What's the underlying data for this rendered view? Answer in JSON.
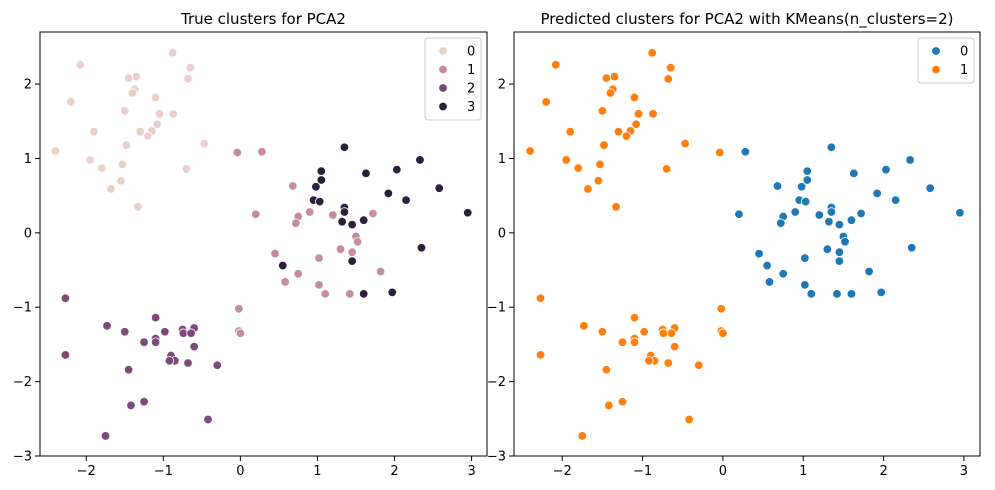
{
  "chart_data": [
    {
      "type": "scatter",
      "title": "True clusters for PCA2",
      "xlabel": "",
      "ylabel": "",
      "xlim": [
        -2.6,
        3.2
      ],
      "ylim": [
        -3,
        2.7
      ],
      "xticks": [
        -2,
        -1,
        0,
        1,
        2,
        3
      ],
      "yticks": [
        -3,
        -2,
        -1,
        0,
        1,
        2
      ],
      "xtick_labels": [
        "−2",
        "−1",
        "0",
        "1",
        "2",
        "3"
      ],
      "ytick_labels": [
        "−3",
        "−2",
        "−1",
        "0",
        "1",
        "2"
      ],
      "legend": {
        "position": "upper right",
        "entries": [
          "0",
          "1",
          "2",
          "3"
        ]
      },
      "colors": [
        "#ebd0c9",
        "#c48c9f",
        "#7c4a79",
        "#2d1e3e"
      ],
      "series": [
        {
          "name": "0",
          "points": [
            [
              -0.88,
              2.42
            ],
            [
              -2.08,
              2.26
            ],
            [
              -1.35,
              2.1
            ],
            [
              -1.45,
              2.08
            ],
            [
              -0.65,
              2.22
            ],
            [
              -0.68,
              2.07
            ],
            [
              -1.1,
              1.82
            ],
            [
              -2.2,
              1.76
            ],
            [
              -0.87,
              1.6
            ],
            [
              -1.37,
              1.93
            ],
            [
              -1.4,
              1.88
            ],
            [
              -1.05,
              1.6
            ],
            [
              -1.08,
              1.46
            ],
            [
              -1.5,
              1.64
            ],
            [
              -1.9,
              1.36
            ],
            [
              -1.3,
              1.36
            ],
            [
              -1.15,
              1.37
            ],
            [
              -1.2,
              1.3
            ],
            [
              -0.47,
              1.2
            ],
            [
              -1.48,
              1.18
            ],
            [
              -2.4,
              1.1
            ],
            [
              -1.95,
              0.98
            ],
            [
              -1.53,
              0.92
            ],
            [
              -1.8,
              0.87
            ],
            [
              -0.7,
              0.86
            ],
            [
              -1.55,
              0.7
            ],
            [
              -1.68,
              0.59
            ],
            [
              -1.33,
              0.35
            ]
          ]
        },
        {
          "name": "1",
          "points": [
            [
              -0.04,
              1.08
            ],
            [
              0.28,
              1.09
            ],
            [
              0.68,
              0.63
            ],
            [
              0.2,
              0.25
            ],
            [
              0.75,
              0.22
            ],
            [
              0.72,
              0.13
            ],
            [
              1.2,
              0.24
            ],
            [
              1.72,
              0.26
            ],
            [
              0.9,
              0.28
            ],
            [
              1.5,
              -0.05
            ],
            [
              1.52,
              -0.12
            ],
            [
              1.45,
              -0.26
            ],
            [
              1.3,
              -0.22
            ],
            [
              0.45,
              -0.28
            ],
            [
              0.75,
              -0.55
            ],
            [
              1.02,
              -0.34
            ],
            [
              1.82,
              -0.52
            ],
            [
              0.58,
              -0.66
            ],
            [
              1.02,
              -0.7
            ],
            [
              1.42,
              -0.82
            ],
            [
              1.1,
              -0.82
            ],
            [
              -0.02,
              -1.02
            ],
            [
              -0.02,
              -1.32
            ],
            [
              0.0,
              -1.35
            ]
          ]
        },
        {
          "name": "2",
          "points": [
            [
              -2.27,
              -0.88
            ],
            [
              -1.73,
              -1.25
            ],
            [
              -1.5,
              -1.33
            ],
            [
              -1.1,
              -1.14
            ],
            [
              -0.75,
              -1.3
            ],
            [
              -0.74,
              -1.35
            ],
            [
              -0.6,
              -1.28
            ],
            [
              -0.98,
              -1.33
            ],
            [
              -1.1,
              -1.42
            ],
            [
              -1.1,
              -1.47
            ],
            [
              -1.25,
              -1.47
            ],
            [
              -0.6,
              -1.53
            ],
            [
              -0.9,
              -1.65
            ],
            [
              -0.85,
              -1.72
            ],
            [
              -0.68,
              -1.75
            ],
            [
              -0.92,
              -1.72
            ],
            [
              -2.27,
              -1.64
            ],
            [
              -1.45,
              -1.84
            ],
            [
              -0.3,
              -1.78
            ],
            [
              -1.25,
              -2.27
            ],
            [
              -1.42,
              -2.32
            ],
            [
              -0.42,
              -2.51
            ],
            [
              -1.75,
              -2.73
            ],
            [
              -0.64,
              -1.35
            ]
          ]
        },
        {
          "name": "3",
          "points": [
            [
              1.35,
              1.15
            ],
            [
              2.33,
              0.98
            ],
            [
              2.03,
              0.85
            ],
            [
              1.63,
              0.8
            ],
            [
              1.05,
              0.83
            ],
            [
              1.05,
              0.71
            ],
            [
              0.98,
              0.62
            ],
            [
              2.58,
              0.6
            ],
            [
              1.92,
              0.53
            ],
            [
              2.15,
              0.44
            ],
            [
              0.95,
              0.44
            ],
            [
              1.03,
              0.42
            ],
            [
              1.35,
              0.34
            ],
            [
              1.35,
              0.28
            ],
            [
              2.95,
              0.27
            ],
            [
              1.6,
              0.17
            ],
            [
              1.32,
              0.15
            ],
            [
              1.45,
              0.11
            ],
            [
              2.35,
              -0.2
            ],
            [
              0.55,
              -0.44
            ],
            [
              1.45,
              -0.38
            ],
            [
              1.97,
              -0.8
            ],
            [
              1.6,
              -0.82
            ]
          ]
        }
      ]
    },
    {
      "type": "scatter",
      "title": "Predicted clusters for PCA2 with KMeans(n_clusters=2)",
      "xlabel": "",
      "ylabel": "",
      "xlim": [
        -2.6,
        3.2
      ],
      "ylim": [
        -3,
        2.7
      ],
      "xticks": [
        -2,
        -1,
        0,
        1,
        2,
        3
      ],
      "yticks": [
        -3,
        -2,
        -1,
        0,
        1,
        2
      ],
      "xtick_labels": [
        "−2",
        "−1",
        "0",
        "1",
        "2",
        "3"
      ],
      "ytick_labels": [
        "−3",
        "−2",
        "−1",
        "0",
        "1",
        "2"
      ],
      "legend": {
        "position": "upper right",
        "entries": [
          "0",
          "1"
        ]
      },
      "colors": [
        "#1f77b4",
        "#ff7f0e"
      ],
      "series": [
        {
          "name": "0",
          "points": [
            [
              0.28,
              1.09
            ],
            [
              0.68,
              0.63
            ],
            [
              0.2,
              0.25
            ],
            [
              0.75,
              0.22
            ],
            [
              0.72,
              0.13
            ],
            [
              1.2,
              0.24
            ],
            [
              1.72,
              0.26
            ],
            [
              0.9,
              0.28
            ],
            [
              1.5,
              -0.05
            ],
            [
              1.52,
              -0.12
            ],
            [
              1.45,
              -0.26
            ],
            [
              1.3,
              -0.22
            ],
            [
              0.45,
              -0.28
            ],
            [
              0.75,
              -0.55
            ],
            [
              1.02,
              -0.34
            ],
            [
              1.82,
              -0.52
            ],
            [
              0.58,
              -0.66
            ],
            [
              1.02,
              -0.7
            ],
            [
              1.42,
              -0.82
            ],
            [
              1.1,
              -0.82
            ],
            [
              1.35,
              1.15
            ],
            [
              2.33,
              0.98
            ],
            [
              2.03,
              0.85
            ],
            [
              1.63,
              0.8
            ],
            [
              1.05,
              0.83
            ],
            [
              1.05,
              0.71
            ],
            [
              0.98,
              0.62
            ],
            [
              2.58,
              0.6
            ],
            [
              1.92,
              0.53
            ],
            [
              2.15,
              0.44
            ],
            [
              0.95,
              0.44
            ],
            [
              1.03,
              0.42
            ],
            [
              1.35,
              0.34
            ],
            [
              1.35,
              0.28
            ],
            [
              2.95,
              0.27
            ],
            [
              1.6,
              0.17
            ],
            [
              1.32,
              0.15
            ],
            [
              1.45,
              0.11
            ],
            [
              2.35,
              -0.2
            ],
            [
              0.55,
              -0.44
            ],
            [
              1.45,
              -0.38
            ],
            [
              1.97,
              -0.8
            ],
            [
              1.6,
              -0.82
            ]
          ]
        },
        {
          "name": "1",
          "points": [
            [
              -0.88,
              2.42
            ],
            [
              -2.08,
              2.26
            ],
            [
              -1.35,
              2.1
            ],
            [
              -1.45,
              2.08
            ],
            [
              -0.65,
              2.22
            ],
            [
              -0.68,
              2.07
            ],
            [
              -1.1,
              1.82
            ],
            [
              -2.2,
              1.76
            ],
            [
              -0.87,
              1.6
            ],
            [
              -1.37,
              1.93
            ],
            [
              -1.4,
              1.88
            ],
            [
              -1.05,
              1.6
            ],
            [
              -1.08,
              1.46
            ],
            [
              -1.5,
              1.64
            ],
            [
              -1.9,
              1.36
            ],
            [
              -1.3,
              1.36
            ],
            [
              -1.15,
              1.37
            ],
            [
              -1.2,
              1.3
            ],
            [
              -0.47,
              1.2
            ],
            [
              -1.48,
              1.18
            ],
            [
              -2.4,
              1.1
            ],
            [
              -1.95,
              0.98
            ],
            [
              -1.53,
              0.92
            ],
            [
              -1.8,
              0.87
            ],
            [
              -0.7,
              0.86
            ],
            [
              -1.55,
              0.7
            ],
            [
              -1.68,
              0.59
            ],
            [
              -1.33,
              0.35
            ],
            [
              -0.04,
              1.08
            ],
            [
              -0.02,
              -1.02
            ],
            [
              -0.02,
              -1.32
            ],
            [
              0.0,
              -1.35
            ],
            [
              -2.27,
              -0.88
            ],
            [
              -1.73,
              -1.25
            ],
            [
              -1.5,
              -1.33
            ],
            [
              -1.1,
              -1.14
            ],
            [
              -0.75,
              -1.3
            ],
            [
              -0.74,
              -1.35
            ],
            [
              -0.6,
              -1.28
            ],
            [
              -0.98,
              -1.33
            ],
            [
              -1.1,
              -1.42
            ],
            [
              -1.1,
              -1.47
            ],
            [
              -1.25,
              -1.47
            ],
            [
              -0.6,
              -1.53
            ],
            [
              -0.9,
              -1.65
            ],
            [
              -0.85,
              -1.72
            ],
            [
              -0.68,
              -1.75
            ],
            [
              -0.92,
              -1.72
            ],
            [
              -2.27,
              -1.64
            ],
            [
              -1.45,
              -1.84
            ],
            [
              -0.3,
              -1.78
            ],
            [
              -1.25,
              -2.27
            ],
            [
              -1.42,
              -2.32
            ],
            [
              -0.42,
              -2.51
            ],
            [
              -1.75,
              -2.73
            ],
            [
              -0.64,
              -1.35
            ]
          ]
        }
      ]
    }
  ]
}
